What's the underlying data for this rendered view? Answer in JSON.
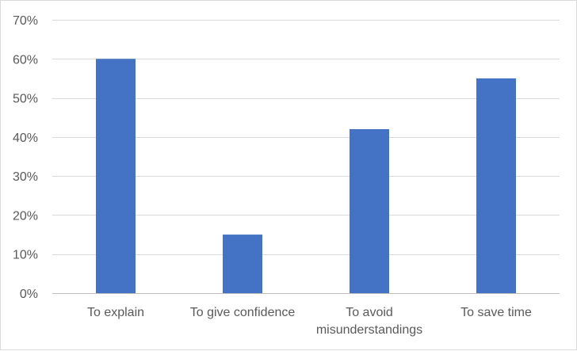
{
  "chart_data": {
    "type": "bar",
    "title": "",
    "xlabel": "",
    "ylabel": "",
    "categories": [
      "To explain",
      "To give confidence",
      "To avoid misunderstandings",
      "To save time"
    ],
    "category_label_lines": [
      [
        "To explain"
      ],
      [
        "To give confidence"
      ],
      [
        "To avoid",
        "misunderstandings"
      ],
      [
        "To save time"
      ]
    ],
    "values": [
      60,
      15,
      42,
      55
    ],
    "ylim": [
      0,
      70
    ],
    "ytick_values": [
      0,
      10,
      20,
      30,
      40,
      50,
      60,
      70
    ],
    "ytick_labels": [
      "0%",
      "10%",
      "20%",
      "30%",
      "40%",
      "50%",
      "60%",
      "70%"
    ],
    "grid": true,
    "legend": "none",
    "colors": {
      "bar": "#4472c4",
      "grid": "#d9d9d9",
      "axis": "#bfbfbf",
      "text": "#595959"
    }
  }
}
